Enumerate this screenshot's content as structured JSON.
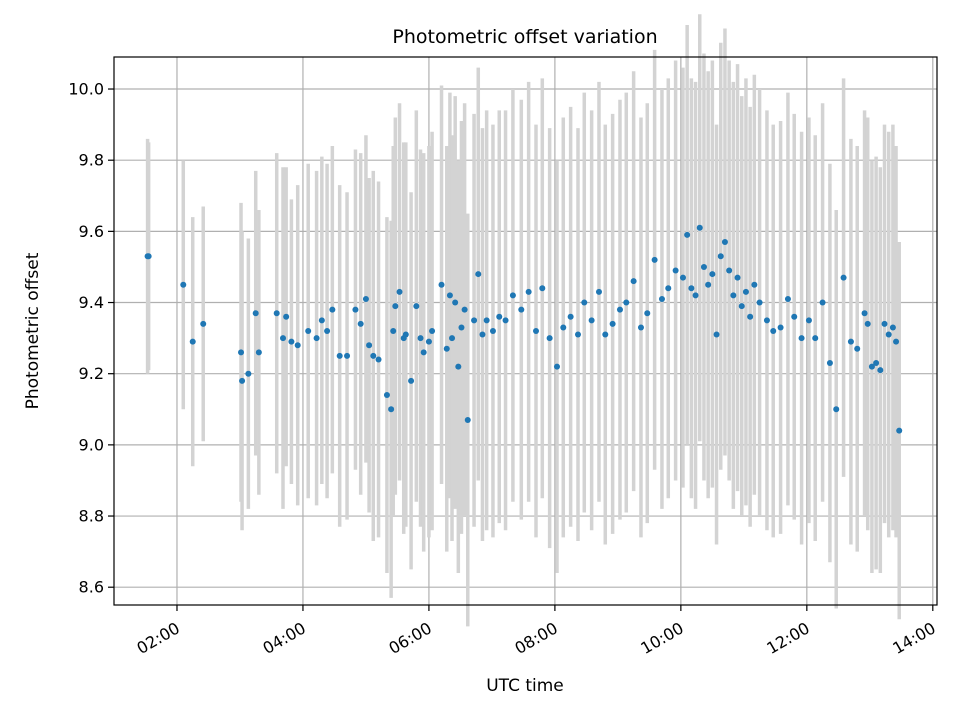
{
  "chart_data": {
    "type": "scatter",
    "title": "Photometric offset variation",
    "xlabel": "UTC time",
    "ylabel": "Photometric offset",
    "x_axis_unit": "UTC time (HH:MM)",
    "xlim": [
      "01:00",
      "14:04"
    ],
    "ylim": [
      8.55,
      10.09
    ],
    "x_ticks": [
      "02:00",
      "04:00",
      "06:00",
      "08:00",
      "10:00",
      "12:00",
      "14:00"
    ],
    "y_ticks": [
      "8.6",
      "8.8",
      "9.0",
      "9.2",
      "9.4",
      "9.6",
      "9.8",
      "10.0"
    ],
    "grid": true,
    "marker_color": "#1f77b4",
    "errorbar_color": "#d3d3d3",
    "series": [
      {
        "x": [
          "01:32",
          "01:33",
          "02:06",
          "02:15",
          "02:25",
          "03:01",
          "03:02",
          "03:08",
          "03:15",
          "03:18",
          "03:35",
          "03:41",
          "03:44",
          "03:49",
          "03:55",
          "04:05",
          "04:13",
          "04:18",
          "04:23",
          "04:28",
          "04:35",
          "04:42",
          "04:50",
          "04:55",
          "05:00",
          "05:03",
          "05:07",
          "05:12",
          "05:20",
          "05:24",
          "05:26",
          "05:28",
          "05:32",
          "05:36",
          "05:38",
          "05:43",
          "05:48",
          "05:52",
          "05:55",
          "06:00",
          "06:03",
          "06:12",
          "06:17",
          "06:20",
          "06:22",
          "06:25",
          "06:28",
          "06:31",
          "06:34",
          "06:37",
          "06:43",
          "06:47",
          "06:51",
          "06:55",
          "07:01",
          "07:07",
          "07:13",
          "07:20",
          "07:28",
          "07:35",
          "07:42",
          "07:48",
          "07:55",
          "08:02",
          "08:08",
          "08:15",
          "08:22",
          "08:28",
          "08:35",
          "08:42",
          "08:48",
          "08:55",
          "09:02",
          "09:08",
          "09:15",
          "09:22",
          "09:28",
          "09:35",
          "09:42",
          "09:48",
          "09:55",
          "10:02",
          "10:06",
          "10:10",
          "10:14",
          "10:18",
          "10:22",
          "10:26",
          "10:30",
          "10:34",
          "10:38",
          "10:42",
          "10:46",
          "10:50",
          "10:54",
          "10:58",
          "11:02",
          "11:06",
          "11:10",
          "11:15",
          "11:22",
          "11:28",
          "11:35",
          "11:42",
          "11:48",
          "11:55",
          "12:02",
          "12:08",
          "12:15",
          "12:22",
          "12:28",
          "12:35",
          "12:42",
          "12:48",
          "12:55",
          "12:58",
          "13:02",
          "13:06",
          "13:10",
          "13:14",
          "13:18",
          "13:22",
          "13:25",
          "13:28"
        ],
        "y": [
          9.53,
          9.53,
          9.45,
          9.29,
          9.34,
          9.26,
          9.18,
          9.2,
          9.37,
          9.26,
          9.37,
          9.3,
          9.36,
          9.29,
          9.28,
          9.32,
          9.3,
          9.35,
          9.32,
          9.38,
          9.25,
          9.25,
          9.38,
          9.34,
          9.41,
          9.28,
          9.25,
          9.24,
          9.14,
          9.1,
          9.32,
          9.39,
          9.43,
          9.3,
          9.31,
          9.18,
          9.39,
          9.3,
          9.26,
          9.29,
          9.32,
          9.45,
          9.27,
          9.42,
          9.3,
          9.4,
          9.22,
          9.33,
          9.38,
          9.07,
          9.35,
          9.48,
          9.31,
          9.35,
          9.32,
          9.36,
          9.35,
          9.42,
          9.38,
          9.43,
          9.32,
          9.44,
          9.3,
          9.22,
          9.33,
          9.36,
          9.31,
          9.4,
          9.35,
          9.43,
          9.31,
          9.34,
          9.38,
          9.4,
          9.46,
          9.33,
          9.37,
          9.52,
          9.41,
          9.44,
          9.49,
          9.47,
          9.59,
          9.44,
          9.42,
          9.61,
          9.5,
          9.45,
          9.48,
          9.31,
          9.53,
          9.57,
          9.49,
          9.42,
          9.47,
          9.39,
          9.43,
          9.36,
          9.45,
          9.4,
          9.35,
          9.32,
          9.33,
          9.41,
          9.36,
          9.3,
          9.35,
          9.3,
          9.4,
          9.23,
          9.1,
          9.47,
          9.29,
          9.27,
          9.37,
          9.34,
          9.22,
          9.23,
          9.21,
          9.34,
          9.31,
          9.33,
          9.29,
          9.04
        ],
        "yerr": [
          0.33,
          0.32,
          0.35,
          0.35,
          0.33,
          0.42,
          0.42,
          0.38,
          0.4,
          0.4,
          0.45,
          0.48,
          0.42,
          0.4,
          0.45,
          0.47,
          0.47,
          0.46,
          0.47,
          0.46,
          0.48,
          0.46,
          0.45,
          0.48,
          0.46,
          0.47,
          0.52,
          0.5,
          0.5,
          0.53,
          0.52,
          0.53,
          0.53,
          0.55,
          0.54,
          0.53,
          0.55,
          0.53,
          0.56,
          0.55,
          0.56,
          0.56,
          0.57,
          0.57,
          0.57,
          0.58,
          0.58,
          0.58,
          0.58,
          0.58,
          0.58,
          0.58,
          0.58,
          0.59,
          0.58,
          0.58,
          0.59,
          0.58,
          0.59,
          0.59,
          0.58,
          0.59,
          0.59,
          0.58,
          0.59,
          0.59,
          0.58,
          0.59,
          0.59,
          0.59,
          0.59,
          0.59,
          0.59,
          0.59,
          0.59,
          0.59,
          0.59,
          0.59,
          0.59,
          0.59,
          0.59,
          0.59,
          0.59,
          0.59,
          0.6,
          0.6,
          0.6,
          0.6,
          0.6,
          0.59,
          0.6,
          0.6,
          0.59,
          0.6,
          0.6,
          0.59,
          0.6,
          0.59,
          0.59,
          0.6,
          0.59,
          0.58,
          0.58,
          0.58,
          0.57,
          0.58,
          0.57,
          0.57,
          0.56,
          0.56,
          0.56,
          0.56,
          0.57,
          0.57,
          0.57,
          0.58,
          0.58,
          0.58,
          0.57,
          0.56,
          0.57,
          0.57,
          0.55,
          0.53
        ]
      }
    ]
  }
}
